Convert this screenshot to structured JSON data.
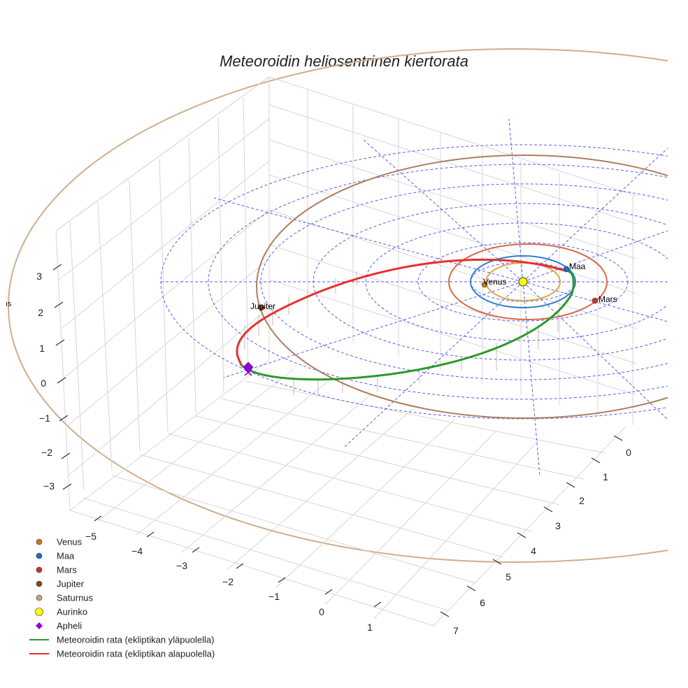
{
  "chart_data": {
    "type": "line3d",
    "title": "Meteoroidin heliosentrinen kiertorata",
    "axes": {
      "x": {
        "ticks": [
          "−5",
          "−4",
          "−3",
          "−2",
          "−1",
          "0",
          "1"
        ]
      },
      "y": {
        "ticks": [
          "0",
          "1",
          "2",
          "3",
          "4",
          "5",
          "6",
          "7"
        ]
      },
      "z": {
        "label": "ıs",
        "ticks": [
          "3",
          "2",
          "1",
          "0",
          "−1",
          "−2",
          "−3"
        ]
      }
    },
    "planets": [
      {
        "name": "Venus",
        "label": "Venus",
        "color": "#c8781e",
        "orbit_color": "#d9a840",
        "orbit_radius_au": 0.72,
        "label_shown": true
      },
      {
        "name": "Maa",
        "label": "Maa",
        "color": "#1f6fbf",
        "orbit_color": "#2c7fd0",
        "orbit_radius_au": 1.0,
        "label_shown": true
      },
      {
        "name": "Mars",
        "label": "Mars",
        "color": "#c0392b",
        "orbit_color": "#d9694a",
        "orbit_radius_au": 1.52,
        "label_shown": true
      },
      {
        "name": "Jupiter",
        "label": "Jupiter",
        "color": "#8b4513",
        "orbit_color": "#b07c5e",
        "orbit_radius_au": 5.2,
        "label_shown": true
      },
      {
        "name": "Saturnus",
        "label": "Saturnus",
        "color": "#c8a27a",
        "orbit_color": "#cfae8a",
        "orbit_radius_au": 9.5,
        "label_shown": false
      }
    ],
    "sun": {
      "name": "Aurinko",
      "color": "#ffff00"
    },
    "aphelion": {
      "name": "Apheli",
      "color": "#9400d3"
    },
    "meteoroid_orbit": [
      {
        "name": "Meteoroidin rata (ekliptikan yläpuolella)",
        "color": "#2a9a2a"
      },
      {
        "name": "Meteoroidin rata (ekliptikan alapuolella)",
        "color": "#e83030"
      }
    ],
    "legend": [
      {
        "label": "Venus",
        "symbol": "circle",
        "color": "#c8781e"
      },
      {
        "label": "Maa",
        "symbol": "circle",
        "color": "#1f6fbf"
      },
      {
        "label": "Mars",
        "symbol": "circle",
        "color": "#c0392b"
      },
      {
        "label": "Jupiter",
        "symbol": "circle",
        "color": "#8b4513"
      },
      {
        "label": "Saturnus",
        "symbol": "circle",
        "color": "#c8a27a"
      },
      {
        "label": "Aurinko",
        "symbol": "circle",
        "color": "#ffff00"
      },
      {
        "label": "Apheli",
        "symbol": "diamond",
        "color": "#9400d3"
      },
      {
        "label": "Meteoroidin rata (ekliptikan yläpuolella)",
        "symbol": "line",
        "color": "#2a9a2a"
      },
      {
        "label": "Meteoroidin rata (ekliptikan alapuolella)",
        "symbol": "line",
        "color": "#e83030"
      }
    ],
    "legend_position": "bottom-left"
  }
}
